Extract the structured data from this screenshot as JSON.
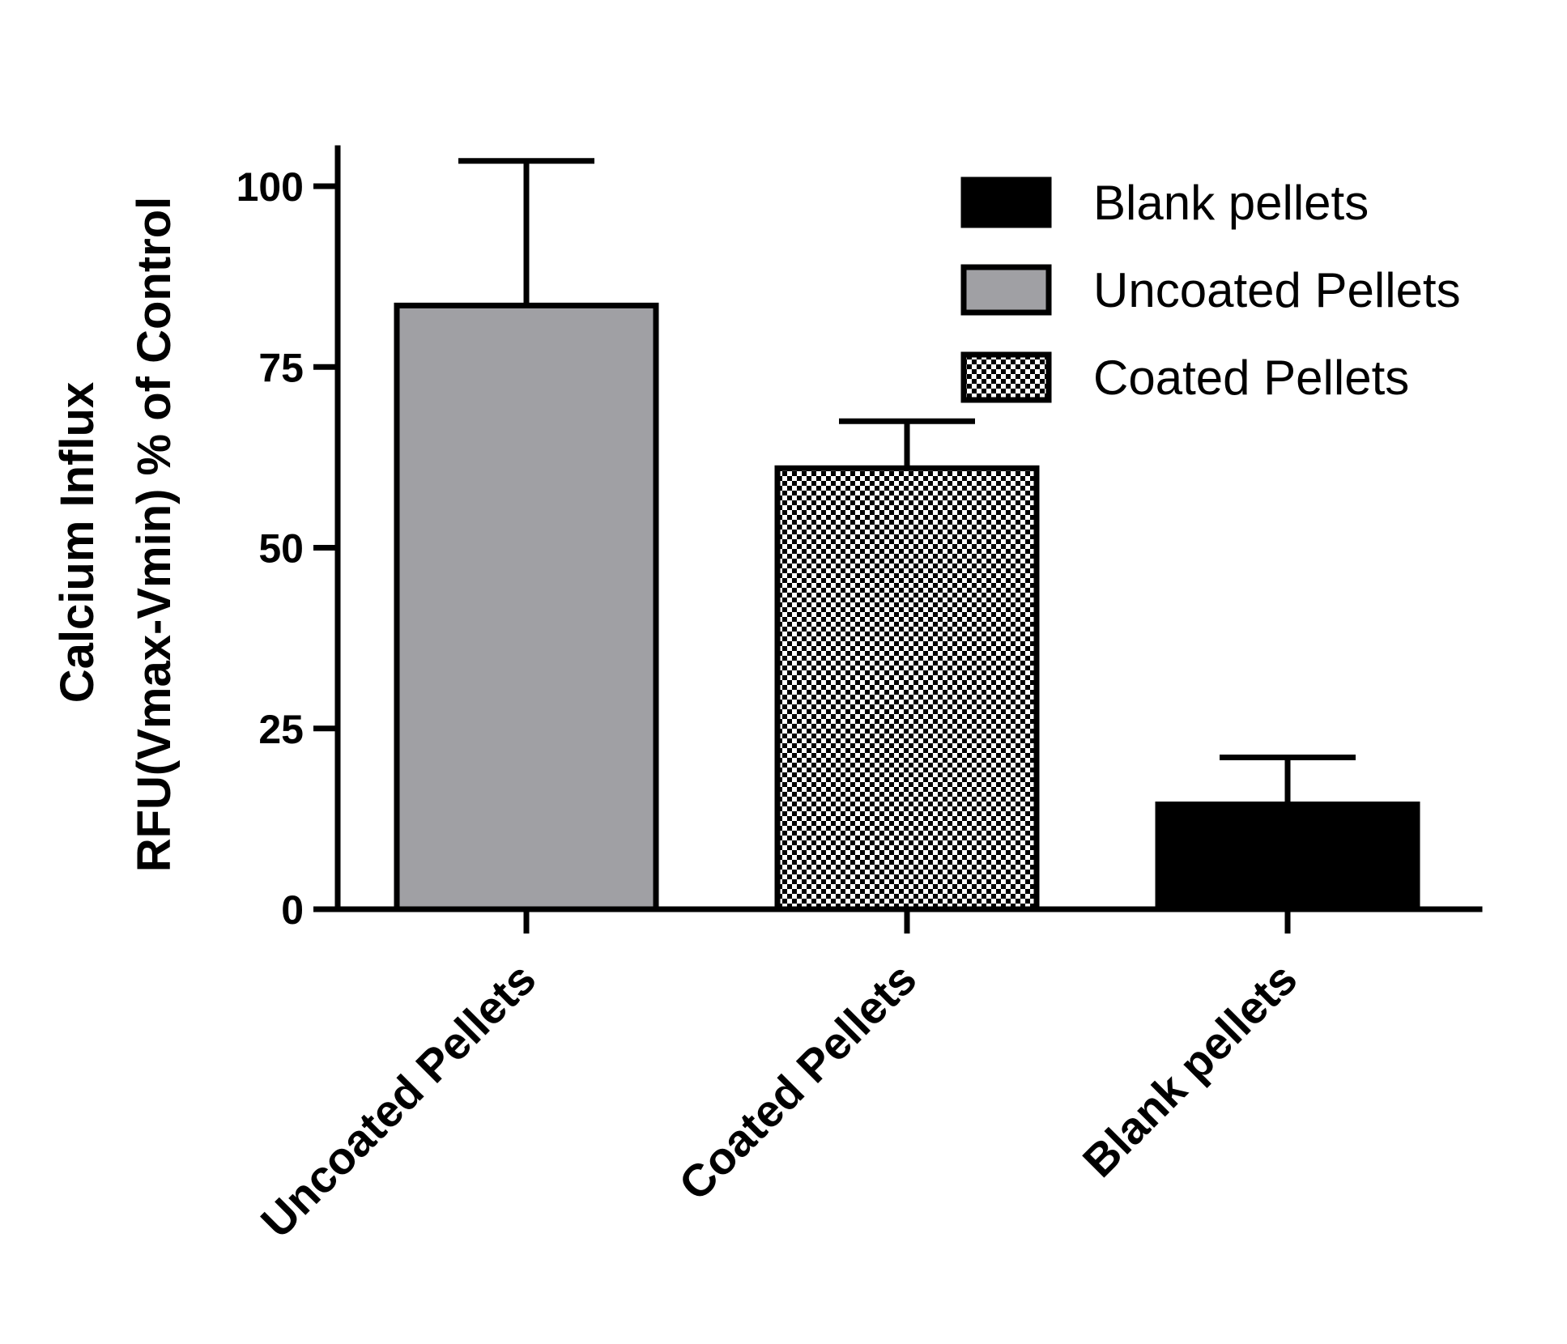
{
  "chart_data": {
    "type": "bar",
    "categories": [
      "Uncoated Pellets",
      "Coated Pellets",
      "Blank pellets"
    ],
    "values": [
      83.5,
      61.0,
      14.5
    ],
    "error_upper": [
      103.5,
      67.5,
      21.0
    ],
    "bar_styles": [
      "gray",
      "checker",
      "black"
    ],
    "colors": {
      "gray": "#a0a0a4",
      "black": "#000000",
      "checker_dark": "#000000",
      "checker_light": "#ffffff"
    },
    "ylabel_line1": "Calcium Influx",
    "ylabel_line2": "RFU(Vmax-Vmin) % of Control",
    "xlabel": "",
    "ylim": [
      0,
      105
    ],
    "yticks": [
      0,
      25,
      50,
      75,
      100
    ],
    "grid": false,
    "legend": {
      "placement": "top-right",
      "entries": [
        {
          "label": "Blank pellets",
          "style": "black"
        },
        {
          "label": "Uncoated Pellets",
          "style": "gray"
        },
        {
          "label": "Coated Pellets",
          "style": "checker"
        }
      ]
    }
  }
}
